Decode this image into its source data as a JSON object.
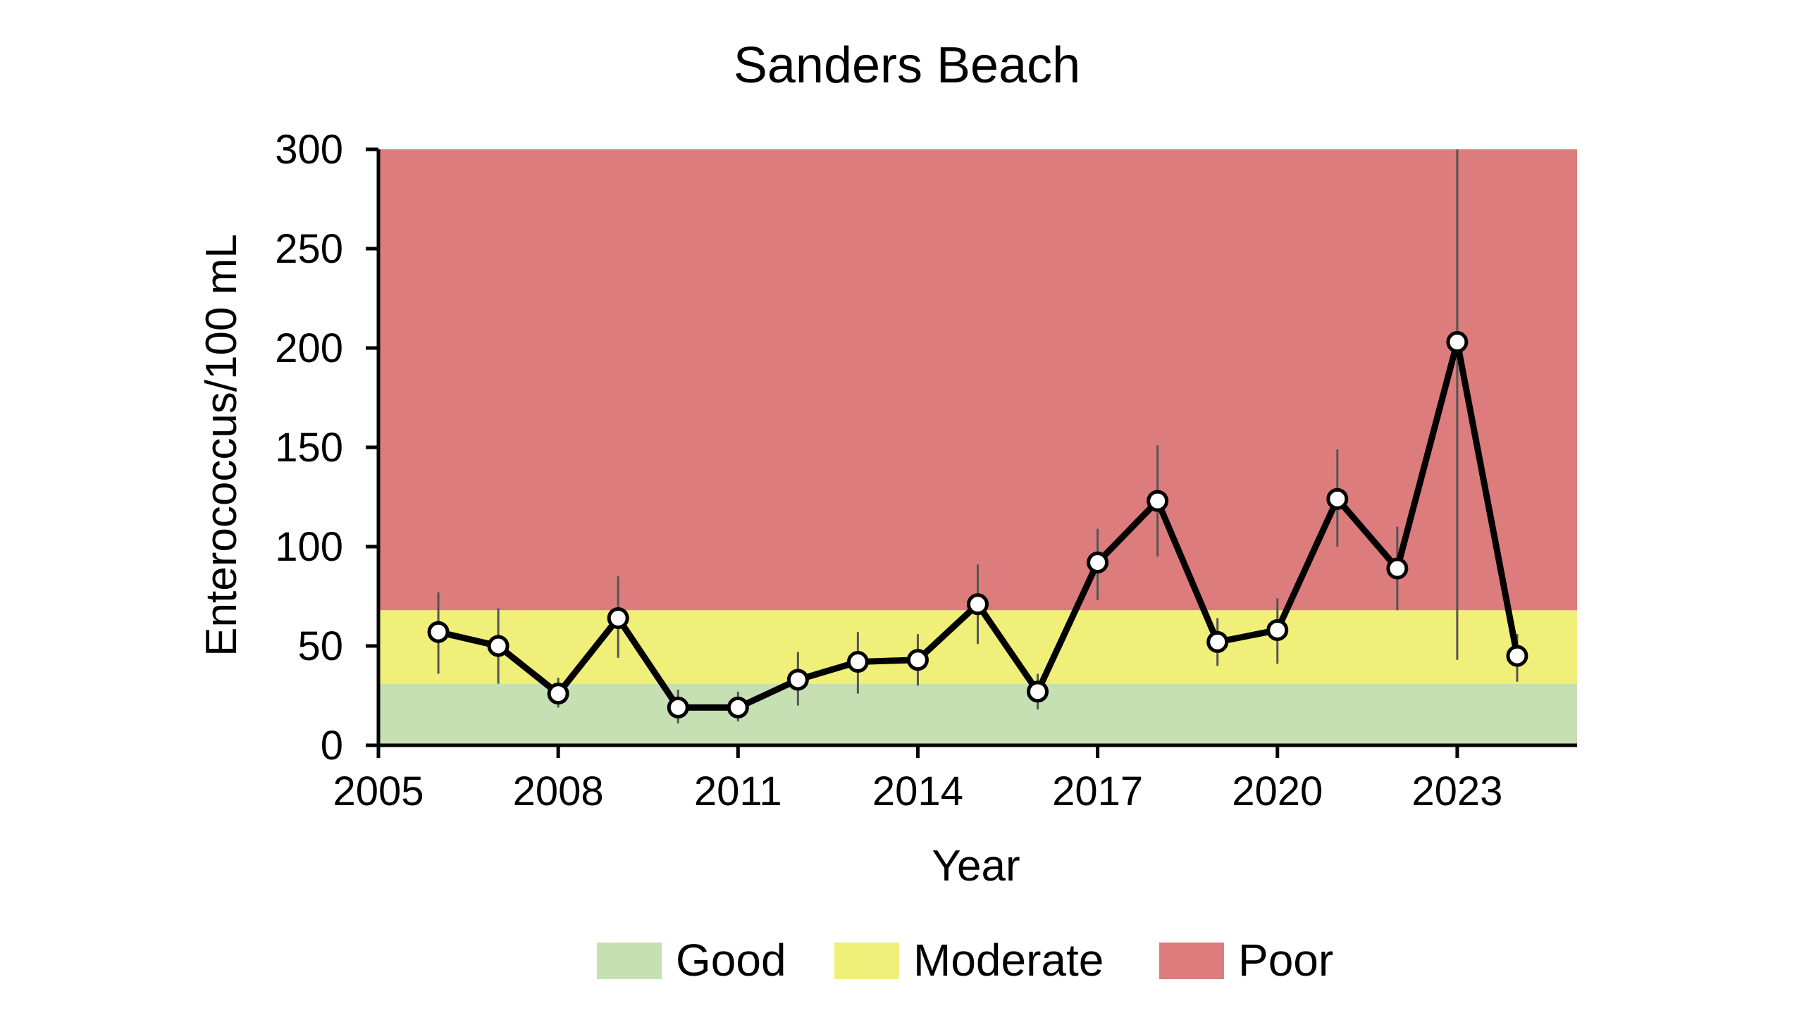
{
  "chart_data": {
    "type": "line",
    "title": "Sanders Beach",
    "xlabel": "Year",
    "ylabel": "Enterococcus/100 mL",
    "xlim": [
      2005,
      2025
    ],
    "ylim": [
      0,
      300
    ],
    "xticks": [
      2005,
      2008,
      2011,
      2014,
      2017,
      2020,
      2023
    ],
    "yticks": [
      0,
      50,
      100,
      150,
      200,
      250,
      300
    ],
    "grid": false,
    "legend_position": "bottom",
    "bands": [
      {
        "name": "Good",
        "from": 0,
        "to": 31,
        "color": "#c6e0b4"
      },
      {
        "name": "Moderate",
        "from": 31,
        "to": 68,
        "color": "#f0ef7a"
      },
      {
        "name": "Poor",
        "from": 68,
        "to": 300,
        "color": "#dd7c7c"
      }
    ],
    "series": [
      {
        "x": [
          2006,
          2007,
          2008,
          2009,
          2010,
          2011,
          2012,
          2013,
          2014,
          2015,
          2016,
          2017,
          2018,
          2019,
          2020,
          2021,
          2022,
          2023,
          2024
        ],
        "y": [
          57,
          50,
          26,
          64,
          19,
          19,
          33,
          42,
          43,
          71,
          27,
          92,
          123,
          52,
          58,
          124,
          89,
          203,
          45
        ],
        "y_low": [
          36,
          31,
          19,
          44,
          11,
          12,
          20,
          26,
          30,
          51,
          18,
          73,
          95,
          40,
          41,
          100,
          68,
          43,
          32
        ],
        "y_high": [
          77,
          69,
          34,
          85,
          28,
          27,
          47,
          57,
          56,
          91,
          36,
          109,
          151,
          64,
          74,
          149,
          110,
          300,
          56
        ],
        "color": "#000000",
        "marker_fill": "#ffffff",
        "errorbar_color": "#555555"
      }
    ]
  }
}
